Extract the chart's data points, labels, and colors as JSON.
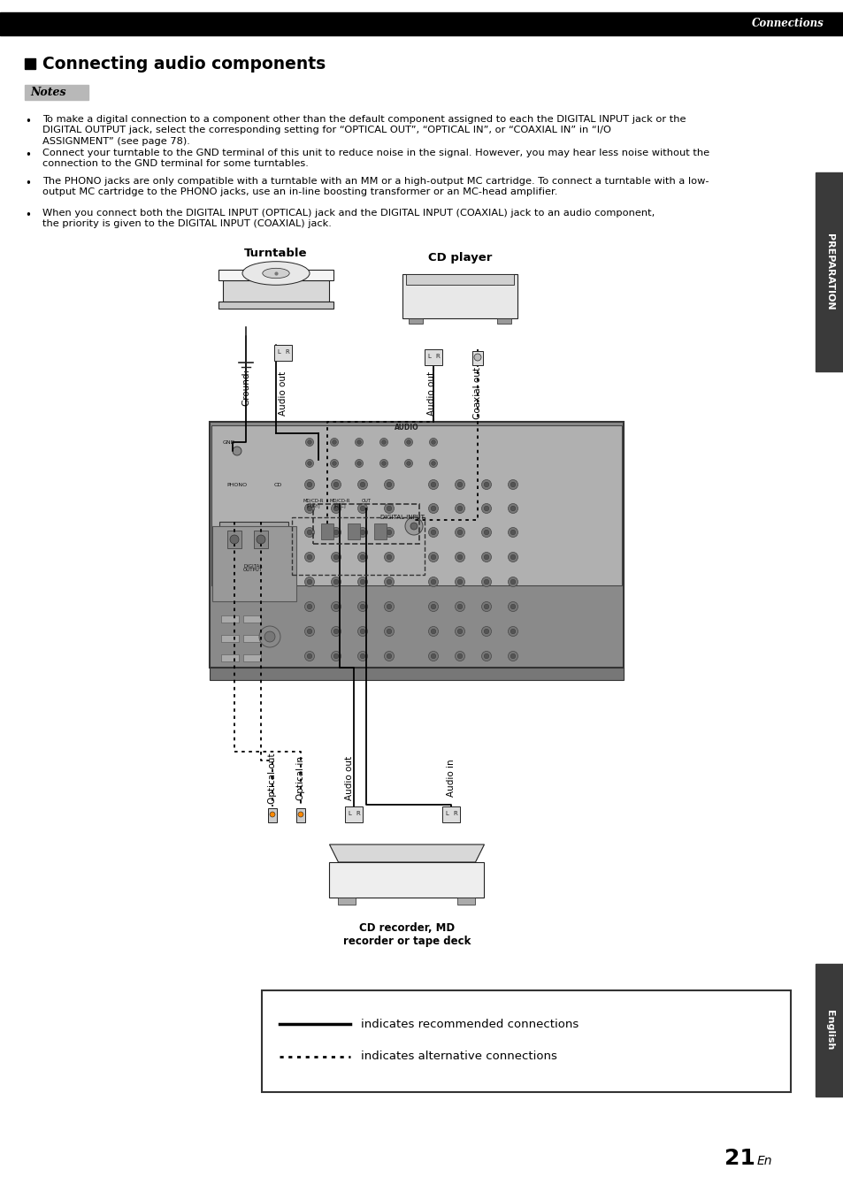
{
  "page_bg": "#ffffff",
  "header_bar_color": "#000000",
  "header_text": "Connections",
  "header_text_color": "#ffffff",
  "title_text": "Connecting audio components",
  "notes_text": "Notes",
  "notes_box_bg": "#c8c8c8",
  "bullet_points": [
    "To make a digital connection to a component other than the default component assigned to each the DIGITAL INPUT jack or the\nDIGITAL OUTPUT jack, select the corresponding setting for “OPTICAL OUT”, “OPTICAL IN”, or “COAXIAL IN” in “I/O\nASSIGNMENT” (see page 78).",
    "Connect your turntable to the GND terminal of this unit to reduce noise in the signal. However, you may hear less noise without the\nconnection to the GND terminal for some turntables.",
    "The PHONO jacks are only compatible with a turntable with an MM or a high-output MC cartridge. To connect a turntable with a low-\noutput MC cartridge to the PHONO jacks, use an in-line boosting transformer or an MC-head amplifier.",
    "When you connect both the DIGITAL INPUT (OPTICAL) jack and the DIGITAL INPUT (COAXIAL) jack to an audio component,\nthe priority is given to the DIGITAL INPUT (COAXIAL) jack."
  ],
  "side_tab_top_text": "PREPARATION",
  "side_tab_bottom_text": "English",
  "side_tab_bg": "#3a3a3a",
  "side_tab_text_color": "#ffffff",
  "turntable_label": "Turntable",
  "cd_player_label": "CD player",
  "cd_recorder_label": "CD recorder, MD\nrecorder or tape deck",
  "legend_solid_label": "indicates recommended connections",
  "legend_dashed_label": "indicates alternative connections",
  "page_number": "21",
  "page_en": "En"
}
